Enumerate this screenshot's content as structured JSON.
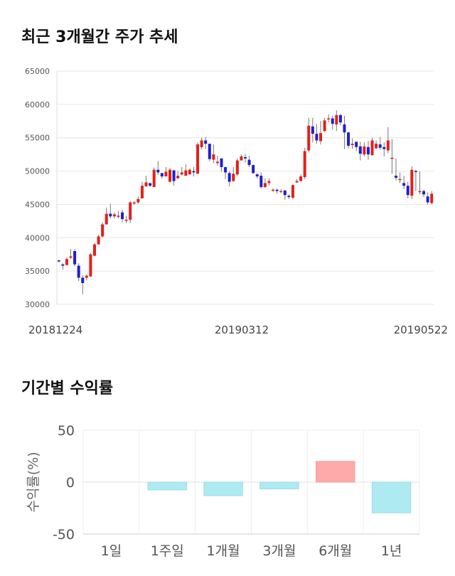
{
  "sections": {
    "price_title": "최근 3개월간 주가 추세",
    "returns_title": "기간별 수익률"
  },
  "colors": {
    "up": "#e0211b",
    "down": "#1f1fcf",
    "return_positive": "#ffaaaa",
    "return_negative": "#aeeaf2"
  },
  "chart_data": [
    {
      "type": "candlestick",
      "title": "최근 3개월간 주가 추세",
      "ylim": [
        30000,
        65000
      ],
      "yticks": [
        30000,
        35000,
        40000,
        45000,
        50000,
        55000,
        60000,
        65000
      ],
      "xtick_labels": [
        "20181224",
        "20190312",
        "20190522"
      ],
      "grid": true,
      "closes": [
        36500,
        35800,
        36800,
        37200,
        36000,
        34000,
        33200,
        34300,
        37500,
        39000,
        40200,
        42000,
        43600,
        43200,
        43500,
        43300,
        42800,
        42700,
        45300,
        45300,
        45800,
        47800,
        48300,
        47800,
        50200,
        49800,
        49200,
        49900,
        50200,
        48500,
        49300,
        49800,
        50100,
        50200,
        49800,
        54000,
        54600,
        54100,
        51800,
        52500,
        51400,
        50600,
        49800,
        48400,
        49600,
        51600,
        52200,
        51900,
        50900,
        49700,
        49200,
        47600,
        48200,
        48500,
        47200,
        47000,
        47000,
        46400,
        46100,
        47900,
        48500,
        49200,
        53000,
        56800,
        55600,
        54600,
        55700,
        57600,
        57900,
        57100,
        58400,
        57300,
        55800,
        53800,
        54100,
        53600,
        52600,
        53700,
        52500,
        54600,
        54100,
        53500,
        53300,
        54600,
        52000,
        49000,
        48800,
        47800,
        46400,
        50200,
        49900,
        47000,
        46500,
        45300,
        46600
      ],
      "highs": [
        36700,
        36200,
        37100,
        38300,
        38300,
        36200,
        34400,
        34500,
        37700,
        39200,
        40400,
        42300,
        44500,
        45100,
        43800,
        44000,
        44200,
        43300,
        45500,
        45500,
        46200,
        48400,
        49300,
        48200,
        50500,
        51500,
        49700,
        50600,
        50500,
        50200,
        50000,
        50600,
        51000,
        50400,
        50600,
        54300,
        55000,
        55100,
        53600,
        54000,
        52300,
        51600,
        50100,
        50000,
        50600,
        51900,
        52500,
        52600,
        52300,
        51000,
        49700,
        49800,
        48900,
        48900,
        47400,
        47400,
        47300,
        47100,
        46500,
        48000,
        48800,
        49500,
        53500,
        58000,
        58000,
        57100,
        57500,
        58000,
        58500,
        58300,
        59100,
        58600,
        58300,
        55900,
        54900,
        54400,
        54400,
        54300,
        54500,
        55000,
        54600,
        55100,
        54300,
        56600,
        54800,
        51900,
        49800,
        49300,
        48400,
        50700,
        50200,
        50000,
        47200,
        46800,
        47000
      ],
      "lows": [
        36300,
        35200,
        35900,
        36800,
        35700,
        33500,
        31500,
        33600,
        34100,
        37200,
        39000,
        40000,
        42000,
        42900,
        42900,
        42900,
        42300,
        42200,
        42200,
        44900,
        45100,
        46000,
        47700,
        47600,
        47600,
        49400,
        48900,
        49200,
        48300,
        47800,
        48900,
        49300,
        49300,
        49500,
        49200,
        49600,
        53300,
        53300,
        51500,
        51200,
        50800,
        49900,
        48800,
        47700,
        48400,
        49200,
        51700,
        51300,
        50600,
        49600,
        48900,
        47400,
        47500,
        47800,
        46900,
        46600,
        46700,
        45700,
        45800,
        45800,
        48200,
        48500,
        48800,
        52800,
        54300,
        54100,
        54000,
        55900,
        57300,
        56200,
        56000,
        56900,
        53300,
        53400,
        53300,
        53000,
        51600,
        52200,
        51700,
        52300,
        53400,
        53200,
        52200,
        52700,
        49600,
        48600,
        48200,
        47300,
        45900,
        45800,
        47000,
        46500,
        46100,
        45000,
        45000
      ],
      "opens": [
        36600,
        36000,
        35900,
        37000,
        38000,
        35800,
        34000,
        34000,
        34200,
        37300,
        39000,
        40200,
        42000,
        43600,
        43200,
        43300,
        43800,
        42700,
        42700,
        45200,
        45300,
        45900,
        47700,
        48200,
        47600,
        50200,
        49700,
        49200,
        48400,
        50100,
        48900,
        49500,
        49300,
        49500,
        50000,
        49600,
        53600,
        54600,
        54100,
        51700,
        51200,
        51900,
        50600,
        49700,
        48500,
        49500,
        51600,
        52100,
        51700,
        50900,
        49500,
        49300,
        47600,
        48200,
        47100,
        47200,
        46900,
        47100,
        46300,
        46000,
        48300,
        48500,
        49100,
        53100,
        56700,
        55600,
        54500,
        56000,
        57800,
        57900,
        57000,
        58400,
        57000,
        55800,
        53900,
        54400,
        53700,
        52500,
        53600,
        52400,
        53400,
        54000,
        53600,
        53100,
        52000,
        49300,
        48800,
        48200,
        47800,
        46300,
        50000,
        46900,
        47000,
        46200,
        45200
      ]
    },
    {
      "type": "bar",
      "ylabel": "수익률(%)",
      "ylim": [
        -50,
        50
      ],
      "yticks": [
        50,
        0,
        -50
      ],
      "categories": [
        "1일",
        "1주일",
        "1개월",
        "3개월",
        "6개월",
        "1년"
      ],
      "values": [
        0,
        -7.5,
        -13,
        -6.5,
        20,
        -29.5
      ]
    }
  ]
}
